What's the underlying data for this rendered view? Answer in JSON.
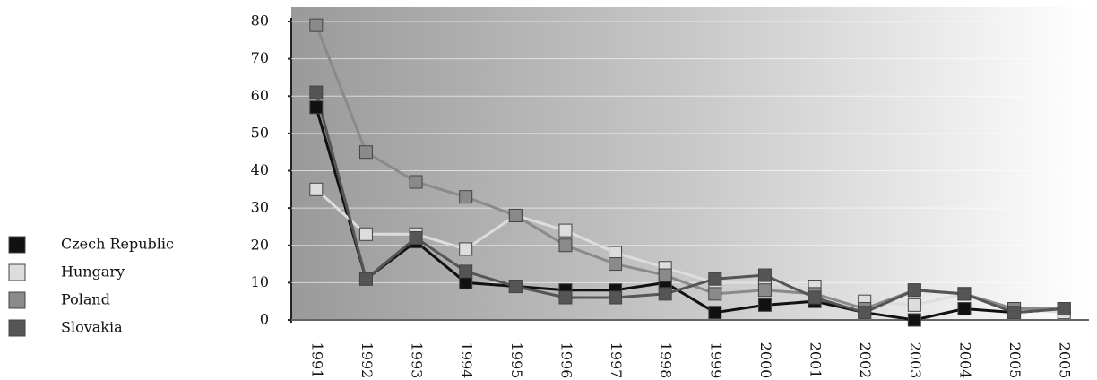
{
  "chart_data": {
    "type": "line",
    "categories": [
      "1991",
      "1992",
      "1993",
      "1994",
      "1995",
      "1996",
      "1997",
      "1998",
      "1999",
      "2000",
      "2001",
      "2002",
      "2003",
      "2004",
      "2005",
      "2005"
    ],
    "series": [
      {
        "name": "Czech Republic",
        "color": "#111111",
        "values": [
          57,
          11,
          21,
          10,
          9,
          8,
          8,
          10,
          2,
          4,
          5,
          2,
          0,
          3,
          2,
          3
        ]
      },
      {
        "name": "Hungary",
        "color": "#dddddd",
        "values": [
          35,
          23,
          23,
          19,
          28,
          24,
          18,
          14,
          10,
          10,
          9,
          5,
          4,
          7,
          3,
          2
        ]
      },
      {
        "name": "Poland",
        "color": "#8a8a8a",
        "values": [
          79,
          45,
          37,
          33,
          28,
          20,
          15,
          12,
          7,
          8,
          7,
          3,
          8,
          7,
          3,
          3
        ]
      },
      {
        "name": "Slovakia",
        "color": "#555555",
        "values": [
          61,
          11,
          22,
          13,
          9,
          6,
          6,
          7,
          11,
          12,
          6,
          2,
          8,
          7,
          2,
          3
        ]
      }
    ],
    "ylim": [
      0,
      80
    ],
    "yticks": [
      0,
      10,
      20,
      30,
      40,
      50,
      60,
      70,
      80
    ],
    "grid": true,
    "legend": "left"
  }
}
